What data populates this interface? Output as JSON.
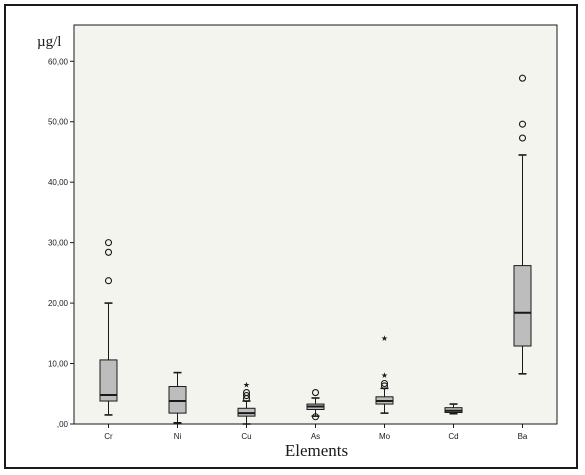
{
  "chart_data": {
    "type": "box",
    "ylabel": "µg/l",
    "xlabel": "Elements",
    "ylim": [
      0,
      66
    ],
    "yticks": [
      0,
      10,
      20,
      30,
      40,
      50,
      60
    ],
    "ytick_labels": [
      ",00",
      "10,00",
      "20,00",
      "30,00",
      "40,00",
      "50,00",
      "60,00"
    ],
    "grid": false,
    "colors": {
      "box_fill": "#bdbdbd",
      "plot_bg": "#f4f4ee",
      "line": "#1a1a1a"
    },
    "categories": [
      "Cr",
      "Ni",
      "Cu",
      "As",
      "Mo",
      "Cd",
      "Ba"
    ],
    "boxes": [
      {
        "name": "Cr",
        "whisker_low": 1.5,
        "q1": 3.8,
        "median": 4.8,
        "q3": 10.6,
        "whisker_high": 20.0,
        "outliers": [
          23.7,
          28.4,
          30.0
        ],
        "extremes": []
      },
      {
        "name": "Ni",
        "whisker_low": 0.2,
        "q1": 1.8,
        "median": 3.8,
        "q3": 6.2,
        "whisker_high": 8.5,
        "outliers": [],
        "extremes": []
      },
      {
        "name": "Cu",
        "whisker_low": 0.0,
        "q1": 1.3,
        "median": 1.8,
        "q3": 2.6,
        "whisker_high": 3.8,
        "outliers": [
          4.2,
          4.7,
          5.2
        ],
        "extremes": [
          6.7
        ]
      },
      {
        "name": "As",
        "whisker_low": 1.3,
        "q1": 2.4,
        "median": 2.9,
        "q3": 3.3,
        "whisker_high": 4.3,
        "outliers": [
          1.2,
          5.2
        ],
        "extremes": []
      },
      {
        "name": "Mo",
        "whisker_low": 1.8,
        "q1": 3.3,
        "median": 3.8,
        "q3": 4.5,
        "whisker_high": 5.9,
        "outliers": [
          6.3,
          6.7
        ],
        "extremes": [
          8.3,
          14.4
        ]
      },
      {
        "name": "Cd",
        "whisker_low": 1.7,
        "q1": 1.9,
        "median": 2.2,
        "q3": 2.7,
        "whisker_high": 3.3,
        "outliers": [],
        "extremes": []
      },
      {
        "name": "Ba",
        "whisker_low": 8.3,
        "q1": 12.9,
        "median": 18.4,
        "q3": 26.2,
        "whisker_high": 44.5,
        "outliers": [
          47.3,
          49.6,
          57.2
        ],
        "extremes": []
      }
    ]
  }
}
